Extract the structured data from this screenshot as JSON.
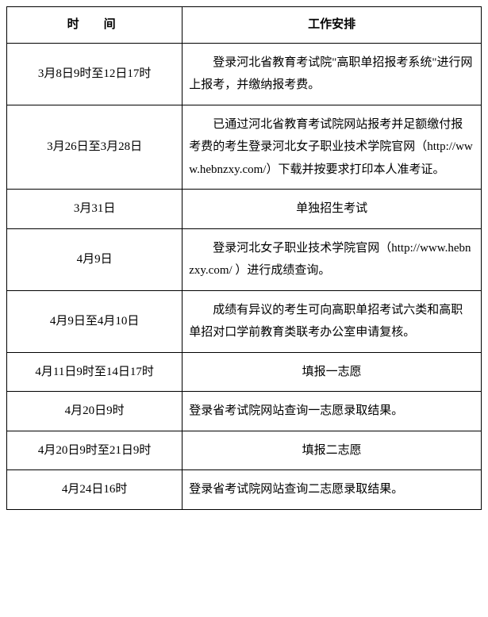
{
  "table": {
    "header_time": "时　间",
    "header_desc": "工作安排",
    "rows": [
      {
        "time": "3月8日9时至12日17时",
        "desc": "登录河北省教育考试院\"高职单招报考系统\"进行网上报考，并缴纳报考费。",
        "desc_class": ""
      },
      {
        "time": "3月26日至3月28日",
        "desc": "已通过河北省教育考试院网站报考并足额缴付报考费的考生登录河北女子职业技术学院官网（http://www.hebnzxy.com/）下载并按要求打印本人准考证。",
        "desc_class": ""
      },
      {
        "time": "3月31日",
        "desc": "单独招生考试",
        "desc_class": "center"
      },
      {
        "time": "4月9日",
        "desc": "登录河北女子职业技术学院官网（http://www.hebnzxy.com/ ）进行成绩查询。",
        "desc_class": ""
      },
      {
        "time": "4月9日至4月10日",
        "desc": "成绩有异议的考生可向高职单招考试六类和高职单招对口学前教育类联考办公室申请复核。",
        "desc_class": ""
      },
      {
        "time": "4月11日9时至14日17时",
        "desc": "填报一志愿",
        "desc_class": "center"
      },
      {
        "time": "4月20日9时",
        "desc": "登录省考试院网站查询一志愿录取结果。",
        "desc_class": "noindent"
      },
      {
        "time": "4月20日9时至21日9时",
        "desc": "填报二志愿",
        "desc_class": "center"
      },
      {
        "time": "4月24日16时",
        "desc": "登录省考试院网站查询二志愿录取结果。",
        "desc_class": "noindent"
      }
    ]
  },
  "colors": {
    "border": "#000000",
    "background": "#ffffff",
    "text": "#000000"
  },
  "typography": {
    "font_family": "SimSun",
    "font_size_pt": 11,
    "line_height": 1.9
  }
}
